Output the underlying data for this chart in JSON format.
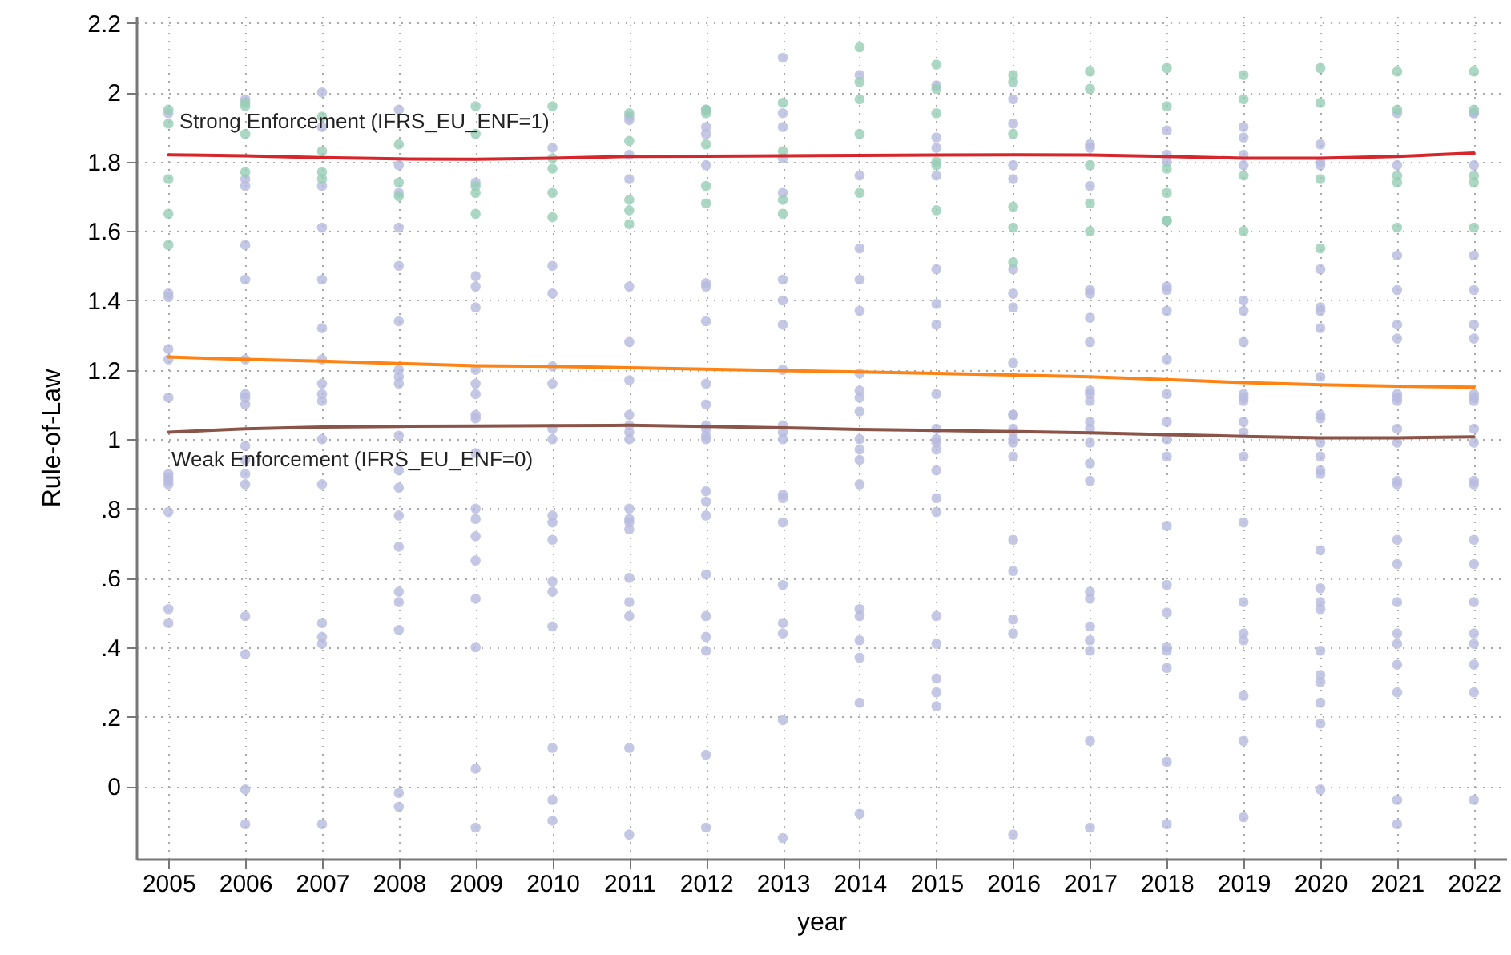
{
  "chart_data": {
    "type": "scatter",
    "xlabel": "year",
    "ylabel": "Rule-of-Law",
    "xlim": [
      2004.58,
      2022.42
    ],
    "ylim": [
      -0.21,
      2.22
    ],
    "xticks": [
      2005,
      2006,
      2007,
      2008,
      2009,
      2010,
      2011,
      2012,
      2013,
      2014,
      2015,
      2016,
      2017,
      2018,
      2019,
      2020,
      2021,
      2022
    ],
    "yticks": [
      0,
      {
        "value": 0.2,
        "label": ".2"
      },
      {
        "value": 0.4,
        "label": ".4"
      },
      {
        "value": 0.6,
        "label": ".6"
      },
      {
        "value": 0.8,
        "label": ".8"
      },
      1,
      1.2,
      1.4,
      1.6,
      1.8,
      2,
      2.2
    ],
    "grid": true,
    "annotations": [
      "Strong Enforcement (IFRS_EU_ENF=1)",
      "Weak Enforcement (IFRS_EU_ENF=0)"
    ],
    "series": [
      {
        "marker": "circle",
        "color": "#b6badf",
        "x": [
          2005,
          2005,
          2005,
          2005,
          2005,
          2005,
          2005,
          2005,
          2005,
          2005,
          2005,
          2005,
          2005,
          2006,
          2006,
          2006,
          2006,
          2006,
          2006,
          2006,
          2006,
          2006,
          2006,
          2006,
          2006,
          2006,
          2006,
          2006,
          2006,
          2006,
          2007,
          2007,
          2007,
          2007,
          2007,
          2007,
          2007,
          2007,
          2007,
          2007,
          2007,
          2007,
          2007,
          2007,
          2007,
          2007,
          2008,
          2008,
          2008,
          2008,
          2008,
          2008,
          2008,
          2008,
          2008,
          2008,
          2008,
          2008,
          2008,
          2008,
          2008,
          2008,
          2008,
          2008,
          2008,
          2009,
          2009,
          2009,
          2009,
          2009,
          2009,
          2009,
          2009,
          2009,
          2009,
          2009,
          2009,
          2009,
          2009,
          2009,
          2009,
          2009,
          2009,
          2010,
          2010,
          2010,
          2010,
          2010,
          2010,
          2010,
          2010,
          2010,
          2010,
          2010,
          2010,
          2010,
          2010,
          2010,
          2010,
          2011,
          2011,
          2011,
          2011,
          2011,
          2011,
          2011,
          2011,
          2011,
          2011,
          2011,
          2011,
          2011,
          2011,
          2011,
          2011,
          2011,
          2011,
          2011,
          2011,
          2012,
          2012,
          2012,
          2012,
          2012,
          2012,
          2012,
          2012,
          2012,
          2012,
          2012,
          2012,
          2012,
          2012,
          2012,
          2012,
          2012,
          2012,
          2012,
          2012,
          2012,
          2012,
          2013,
          2013,
          2013,
          2013,
          2013,
          2013,
          2013,
          2013,
          2013,
          2013,
          2013,
          2013,
          2013,
          2013,
          2013,
          2013,
          2013,
          2013,
          2013,
          2013,
          2014,
          2014,
          2014,
          2014,
          2014,
          2014,
          2014,
          2014,
          2014,
          2014,
          2014,
          2014,
          2014,
          2014,
          2014,
          2014,
          2014,
          2014,
          2014,
          2015,
          2015,
          2015,
          2015,
          2015,
          2015,
          2015,
          2015,
          2015,
          2015,
          2015,
          2015,
          2015,
          2015,
          2015,
          2015,
          2015,
          2015,
          2015,
          2015,
          2016,
          2016,
          2016,
          2016,
          2016,
          2016,
          2016,
          2016,
          2016,
          2016,
          2016,
          2016,
          2016,
          2016,
          2016,
          2016,
          2016,
          2016,
          2016,
          2016,
          2017,
          2017,
          2017,
          2017,
          2017,
          2017,
          2017,
          2017,
          2017,
          2017,
          2017,
          2017,
          2017,
          2017,
          2017,
          2017,
          2017,
          2017,
          2017,
          2017,
          2017,
          2017,
          2018,
          2018,
          2018,
          2018,
          2018,
          2018,
          2018,
          2018,
          2018,
          2018,
          2018,
          2018,
          2018,
          2018,
          2018,
          2018,
          2018,
          2018,
          2018,
          2019,
          2019,
          2019,
          2019,
          2019,
          2019,
          2019,
          2019,
          2019,
          2019,
          2019,
          2019,
          2019,
          2019,
          2019,
          2019,
          2019,
          2019,
          2019,
          2019,
          2020,
          2020,
          2020,
          2020,
          2020,
          2020,
          2020,
          2020,
          2020,
          2020,
          2020,
          2020,
          2020,
          2020,
          2020,
          2020,
          2020,
          2020,
          2020,
          2020,
          2020,
          2020,
          2020,
          2020,
          2021,
          2021,
          2021,
          2021,
          2021,
          2021,
          2021,
          2021,
          2021,
          2021,
          2021,
          2021,
          2021,
          2021,
          2021,
          2021,
          2021,
          2021,
          2021,
          2021,
          2021,
          2021,
          2022,
          2022,
          2022,
          2022,
          2022,
          2022,
          2022,
          2022,
          2022,
          2022,
          2022,
          2022,
          2022,
          2022,
          2022,
          2022,
          2022,
          2022,
          2022,
          2022,
          2022,
          2022
        ],
        "values": [
          1.94,
          1.42,
          1.41,
          1.26,
          1.23,
          1.12,
          0.9,
          0.89,
          0.88,
          0.87,
          0.79,
          0.51,
          0.47,
          -0.11,
          1.98,
          1.75,
          1.73,
          1.56,
          1.46,
          1.23,
          1.13,
          1.12,
          1.1,
          0.98,
          0.94,
          0.9,
          0.87,
          0.49,
          0.38,
          -0.01,
          -0.11,
          2,
          1.9,
          1.73,
          1.61,
          1.46,
          1.32,
          1.23,
          1.16,
          1.13,
          1.11,
          1,
          0.87,
          0.47,
          0.43,
          0.41,
          -0.06,
          1.95,
          1.79,
          1.71,
          1.61,
          1.5,
          1.34,
          1.2,
          1.18,
          1.16,
          1.01,
          0.91,
          0.86,
          0.78,
          0.69,
          0.56,
          0.53,
          0.45,
          -0.02,
          -0.12,
          1.74,
          1.47,
          1.44,
          1.38,
          1.2,
          1.16,
          1.13,
          1.07,
          1.06,
          0.96,
          0.8,
          0.77,
          0.72,
          0.65,
          0.54,
          0.4,
          0.05,
          -0.04,
          1.84,
          1.5,
          1.42,
          1.21,
          1.16,
          1.03,
          1,
          0.78,
          0.76,
          0.71,
          0.59,
          0.56,
          0.46,
          0.11,
          -0.1,
          1.92,
          1.82,
          1.75,
          1.44,
          1.28,
          1.17,
          1.07,
          1.04,
          1.02,
          1,
          0.8,
          0.77,
          0.76,
          0.74,
          0.6,
          0.53,
          0.49,
          0.11,
          -0.14,
          1.93,
          1.88,
          1.79,
          1.45,
          1.44,
          1.34,
          1.16,
          1.1,
          1.04,
          1.03,
          1,
          1.01,
          0.85,
          0.82,
          0.78,
          0.61,
          0.49,
          0.43,
          0.39,
          0.09,
          -0.12,
          1.95,
          1.9,
          1.81,
          1.71,
          1.46,
          1.4,
          1.33,
          1.2,
          1.04,
          1,
          1.02,
          0.84,
          0.83,
          0.76,
          0.58,
          0.47,
          0.44,
          0.19,
          -0.15,
          2.1,
          1.94,
          1.9,
          1.76,
          1.55,
          1.46,
          1.37,
          1.19,
          1.14,
          1.12,
          1.08,
          1,
          0.97,
          0.94,
          0.87,
          0.51,
          0.49,
          0.42,
          0.37,
          0.24,
          -0.08,
          2.05,
          2.02,
          1.87,
          1.84,
          1.76,
          1.49,
          1.39,
          1.33,
          1.13,
          1.03,
          0.99,
          1,
          0.97,
          0.91,
          0.83,
          0.79,
          0.49,
          0.41,
          0.31,
          0.27,
          0.23,
          -0.14,
          1.98,
          1.91,
          1.79,
          1.75,
          1.49,
          1.42,
          1.38,
          1.22,
          1.07,
          1.07,
          1.03,
          1,
          1.02,
          0.99,
          0.95,
          0.71,
          0.62,
          0.48,
          0.44,
          0.39,
          0.13,
          -0.12,
          1.85,
          1.84,
          1.73,
          1.43,
          1.42,
          1.35,
          1.28,
          1.14,
          1.13,
          1.11,
          1.05,
          1.03,
          0.99,
          0.93,
          0.88,
          0.56,
          0.54,
          0.46,
          0.42,
          0.34,
          0.07,
          -0.11,
          1.89,
          1.82,
          1.8,
          1.44,
          1.43,
          1.37,
          1.23,
          1.13,
          1.05,
          1,
          0.95,
          0.75,
          0.58,
          0.5,
          0.4,
          0.39,
          0.26,
          0.13,
          -0.09,
          1.9,
          1.87,
          1.82,
          1.79,
          1.4,
          1.37,
          1.28,
          1.13,
          1.12,
          1.11,
          1.05,
          1.02,
          0.95,
          0.76,
          0.53,
          0.44,
          0.42,
          0.3,
          0.18,
          -0.01,
          1.85,
          1.8,
          1.79,
          1.49,
          1.38,
          1.37,
          1.32,
          1.18,
          1.07,
          1.06,
          0.99,
          0.95,
          0.91,
          0.9,
          0.68,
          0.57,
          0.53,
          0.51,
          0.39,
          0.32,
          0.24,
          -0.11,
          1.94,
          1.79,
          1.53,
          1.43,
          1.33,
          1.29,
          1.13,
          1.12,
          1.11,
          1.03,
          0.99,
          0.88,
          0.87,
          0.71,
          0.64,
          0.53,
          0.44,
          0.41,
          0.35,
          0.27,
          -0.04,
          1.94,
          1.94,
          1.79,
          1.53,
          1.43,
          1.33,
          1.29,
          1.13,
          1.12,
          1.11,
          1.03,
          0.99,
          0.88,
          0.87,
          0.71,
          0.64,
          0.53,
          0.44,
          0.41,
          0.35,
          0.27,
          -0.04
        ]
      },
      {
        "marker": "circle",
        "color": "#96cdb5",
        "x": [
          2005,
          2005,
          2005,
          2005,
          2005,
          2006,
          2006,
          2006,
          2006,
          2007,
          2007,
          2007,
          2007,
          2008,
          2008,
          2008,
          2009,
          2009,
          2009,
          2009,
          2009,
          2010,
          2010,
          2010,
          2010,
          2010,
          2011,
          2011,
          2011,
          2011,
          2011,
          2012,
          2012,
          2012,
          2012,
          2012,
          2013,
          2013,
          2013,
          2013,
          2014,
          2014,
          2014,
          2014,
          2014,
          2015,
          2015,
          2015,
          2015,
          2015,
          2015,
          2016,
          2016,
          2016,
          2016,
          2016,
          2016,
          2017,
          2017,
          2017,
          2017,
          2017,
          2018,
          2018,
          2018,
          2018,
          2018,
          2018,
          2019,
          2019,
          2019,
          2019,
          2020,
          2020,
          2020,
          2020,
          2021,
          2021,
          2021,
          2021,
          2021,
          2022,
          2022,
          2022,
          2022,
          2022
        ],
        "values": [
          1.95,
          1.91,
          1.75,
          1.65,
          1.56,
          1.97,
          1.96,
          1.88,
          1.77,
          1.93,
          1.83,
          1.77,
          1.75,
          1.85,
          1.74,
          1.7,
          1.96,
          1.88,
          1.73,
          1.71,
          1.65,
          1.96,
          1.81,
          1.78,
          1.71,
          1.64,
          1.94,
          1.86,
          1.69,
          1.66,
          1.62,
          1.95,
          1.94,
          1.85,
          1.73,
          1.68,
          1.97,
          1.83,
          1.69,
          1.65,
          2.13,
          2.03,
          1.98,
          1.88,
          1.71,
          2.08,
          2.01,
          1.94,
          1.8,
          1.79,
          1.66,
          2.05,
          2.03,
          1.88,
          1.67,
          1.61,
          1.51,
          2.06,
          2.01,
          1.79,
          1.68,
          1.6,
          2.07,
          1.96,
          1.78,
          1.71,
          1.63,
          1.63,
          2.05,
          1.98,
          1.76,
          1.6,
          2.07,
          1.97,
          1.75,
          1.55,
          2.06,
          1.95,
          1.76,
          1.74,
          1.61,
          2.06,
          1.95,
          1.76,
          1.74,
          1.61
        ]
      },
      {
        "type": "line",
        "color": "#d7262b",
        "x": [
          2005,
          2006,
          2007,
          2008,
          2009,
          2010,
          2011,
          2012,
          2013,
          2014,
          2015,
          2016,
          2017,
          2018,
          2019,
          2020,
          2021,
          2022
        ],
        "values": [
          1.82,
          1.817,
          1.812,
          1.808,
          1.807,
          1.81,
          1.815,
          1.816,
          1.817,
          1.818,
          1.819,
          1.82,
          1.819,
          1.815,
          1.81,
          1.81,
          1.815,
          1.825
        ]
      },
      {
        "type": "line",
        "color": "#ff8214",
        "x": [
          2005,
          2006,
          2007,
          2008,
          2009,
          2010,
          2011,
          2012,
          2013,
          2014,
          2015,
          2016,
          2017,
          2018,
          2019,
          2020,
          2021,
          2022
        ],
        "values": [
          1.237,
          1.23,
          1.225,
          1.218,
          1.212,
          1.21,
          1.206,
          1.202,
          1.198,
          1.194,
          1.19,
          1.185,
          1.18,
          1.172,
          1.163,
          1.157,
          1.153,
          1.15
        ]
      },
      {
        "type": "line",
        "color": "#8a5449",
        "x": [
          2005,
          2006,
          2007,
          2008,
          2009,
          2010,
          2011,
          2012,
          2013,
          2014,
          2015,
          2016,
          2017,
          2018,
          2019,
          2020,
          2021,
          2022
        ],
        "values": [
          1.02,
          1.03,
          1.035,
          1.037,
          1.038,
          1.039,
          1.04,
          1.037,
          1.033,
          1.028,
          1.025,
          1.022,
          1.018,
          1.013,
          1.008,
          1.004,
          1.004,
          1.007
        ]
      }
    ]
  }
}
